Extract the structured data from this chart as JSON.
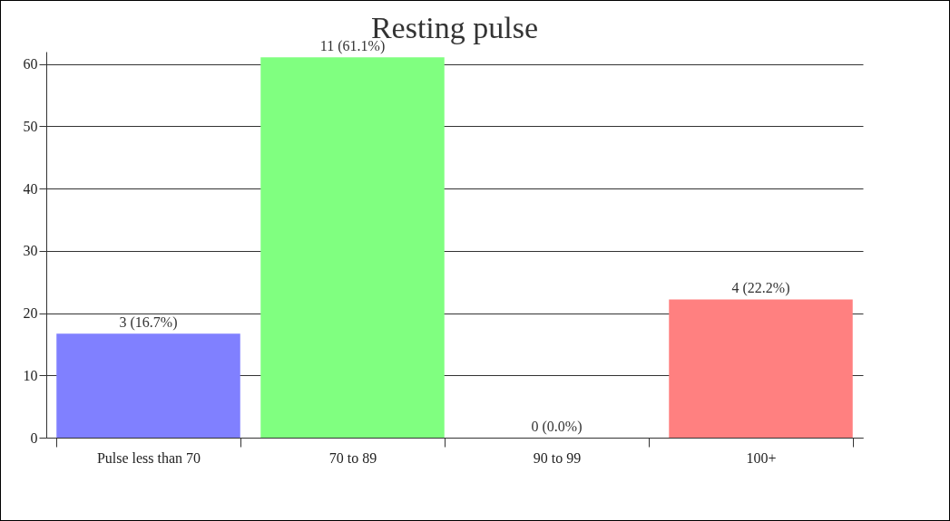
{
  "chart_data": {
    "type": "bar",
    "title": "Resting pulse",
    "categories": [
      "Pulse less than 70",
      "70 to 89",
      "90 to 99",
      "100+"
    ],
    "values": [
      16.7,
      61.1,
      0,
      22.2
    ],
    "colors": [
      "#8080ff",
      "#80ff80",
      "#ffff80",
      "#ff8080"
    ],
    "value_labels": [
      "3 (16.7%)",
      "11 (61.1%)",
      "0 (0.0%)",
      "4 (22.2%)"
    ],
    "ylim": [
      0,
      62
    ],
    "yticks": [
      0,
      10,
      20,
      30,
      40,
      50,
      60
    ],
    "grid": "y"
  }
}
